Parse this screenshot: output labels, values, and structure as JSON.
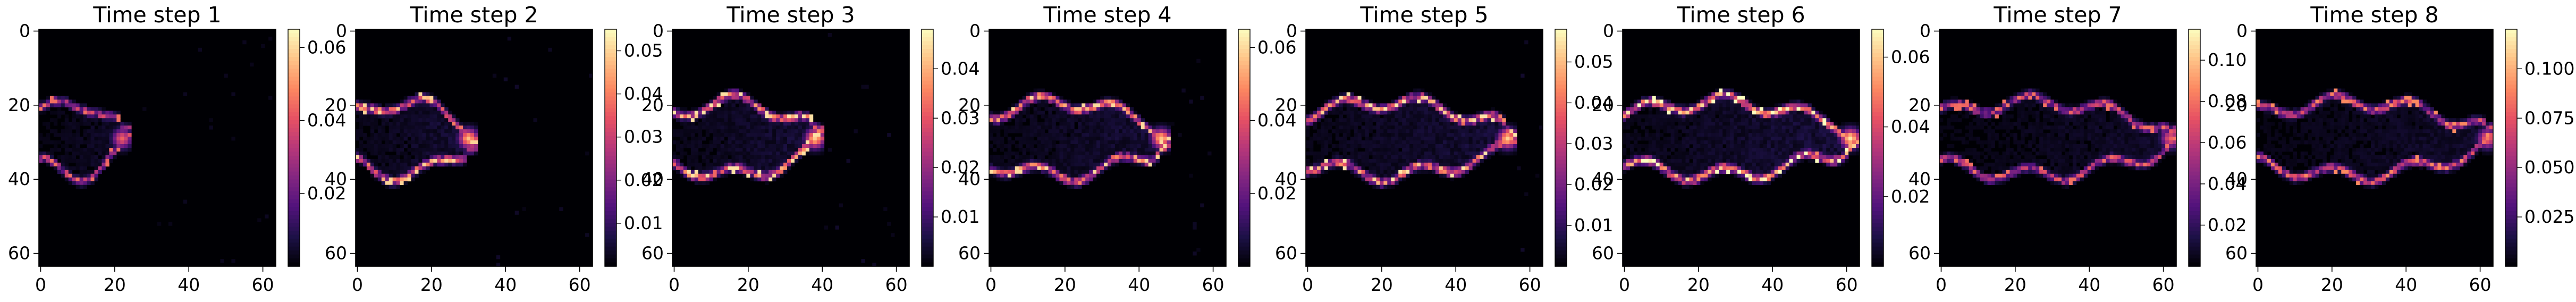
{
  "chart_data": {
    "type": "heatmap",
    "grid_size": [
      64,
      64
    ],
    "x_ticks": [
      "0",
      "20",
      "40",
      "60"
    ],
    "y_ticks": [
      "0",
      "20",
      "40",
      "60"
    ],
    "x_tick_values": [
      0,
      20,
      40,
      60
    ],
    "y_tick_values": [
      0,
      20,
      40,
      60
    ],
    "colormap": "magma",
    "colormap_stops": [
      "#000004",
      "#1d1147",
      "#51127c",
      "#832681",
      "#b73779",
      "#e75263",
      "#fc8961",
      "#fec488",
      "#fcfdbf"
    ],
    "panels": [
      {
        "title": "Time step 1",
        "vmin": 0,
        "vmax": 0.065,
        "colorbar_ticks": [
          "0.02",
          "0.04",
          "0.06"
        ],
        "colorbar_tick_values": [
          0.02,
          0.04,
          0.06
        ],
        "front": 22,
        "peak": 0.045
      },
      {
        "title": "Time step 2",
        "vmin": 0,
        "vmax": 0.055,
        "colorbar_ticks": [
          "0.01",
          "0.02",
          "0.03",
          "0.04",
          "0.05"
        ],
        "colorbar_tick_values": [
          0.01,
          0.02,
          0.03,
          0.04,
          0.05
        ],
        "front": 30,
        "peak": 0.05
      },
      {
        "title": "Time step 3",
        "vmin": 0,
        "vmax": 0.048,
        "colorbar_ticks": [
          "0.01",
          "0.02",
          "0.03",
          "0.04"
        ],
        "colorbar_tick_values": [
          0.01,
          0.02,
          0.03,
          0.04
        ],
        "front": 38,
        "peak": 0.045
      },
      {
        "title": "Time step 4",
        "vmin": 0,
        "vmax": 0.065,
        "colorbar_ticks": [
          "0.02",
          "0.04",
          "0.06"
        ],
        "colorbar_tick_values": [
          0.02,
          0.04,
          0.06
        ],
        "front": 46,
        "peak": 0.06
      },
      {
        "title": "Time step 5",
        "vmin": 0,
        "vmax": 0.058,
        "colorbar_ticks": [
          "0.01",
          "0.02",
          "0.03",
          "0.04",
          "0.05"
        ],
        "colorbar_tick_values": [
          0.01,
          0.02,
          0.03,
          0.04,
          0.05
        ],
        "front": 54,
        "peak": 0.055
      },
      {
        "title": "Time step 6",
        "vmin": 0,
        "vmax": 0.068,
        "colorbar_ticks": [
          "0.02",
          "0.04",
          "0.06"
        ],
        "colorbar_tick_values": [
          0.02,
          0.04,
          0.06
        ],
        "front": 61,
        "peak": 0.068
      },
      {
        "title": "Time step 7",
        "vmin": 0,
        "vmax": 0.115,
        "colorbar_ticks": [
          "0.02",
          "0.04",
          "0.06",
          "0.08",
          "0.10"
        ],
        "colorbar_tick_values": [
          0.02,
          0.04,
          0.06,
          0.08,
          0.1
        ],
        "front": 62,
        "peak": 0.08
      },
      {
        "title": "Time step 8",
        "vmin": 0,
        "vmax": 0.12,
        "colorbar_ticks": [
          "0.025",
          "0.050",
          "0.075",
          "0.100"
        ],
        "colorbar_tick_values": [
          0.025,
          0.05,
          0.075,
          0.1
        ],
        "front": 62,
        "peak": 0.09
      }
    ]
  }
}
